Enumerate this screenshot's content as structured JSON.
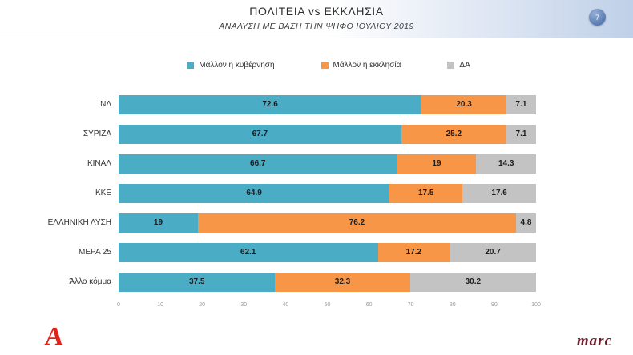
{
  "header": {
    "page_number": "7"
  },
  "chart_data": {
    "type": "bar",
    "orientation": "horizontal-stacked",
    "title": "ΠΟΛΙΤΕΙΑ vs ΕΚΚΛΗΣΙΑ",
    "subtitle": "ΑΝΑΛΥΣΗ ΜΕ ΒΑΣΗ ΤΗΝ ΨΗΦΟ ΙΟΥΛΙΟΥ 2019",
    "categories": [
      "ΝΔ",
      "ΣΥΡΙΖΑ",
      "ΚΙΝΑΛ",
      "ΚΚΕ",
      "ΕΛΛΗΝΙΚΗ ΛΥΣΗ",
      "ΜΕΡΑ 25",
      "Άλλο κόμμα"
    ],
    "series": [
      {
        "name": "Μάλλον η κυβέρνηση",
        "color": "#4BACC6",
        "values": [
          72.6,
          67.7,
          66.7,
          64.9,
          19,
          62.1,
          37.5
        ]
      },
      {
        "name": "Μάλλον η εκκλησία",
        "color": "#F79646",
        "values": [
          20.3,
          25.2,
          19,
          17.5,
          76.2,
          17.2,
          32.3
        ]
      },
      {
        "name": "ΔΑ",
        "color": "#C3C3C3",
        "values": [
          7.1,
          7.1,
          14.3,
          17.6,
          4.8,
          20.7,
          30.2
        ]
      }
    ],
    "xlim": [
      0,
      100
    ],
    "x_ticks": [
      0,
      10,
      20,
      30,
      40,
      50,
      60,
      70,
      80,
      90,
      100
    ],
    "legend_position": "top",
    "grid": "off"
  },
  "footer": {
    "alpha_logo": "A",
    "marc_logo": "marc"
  }
}
